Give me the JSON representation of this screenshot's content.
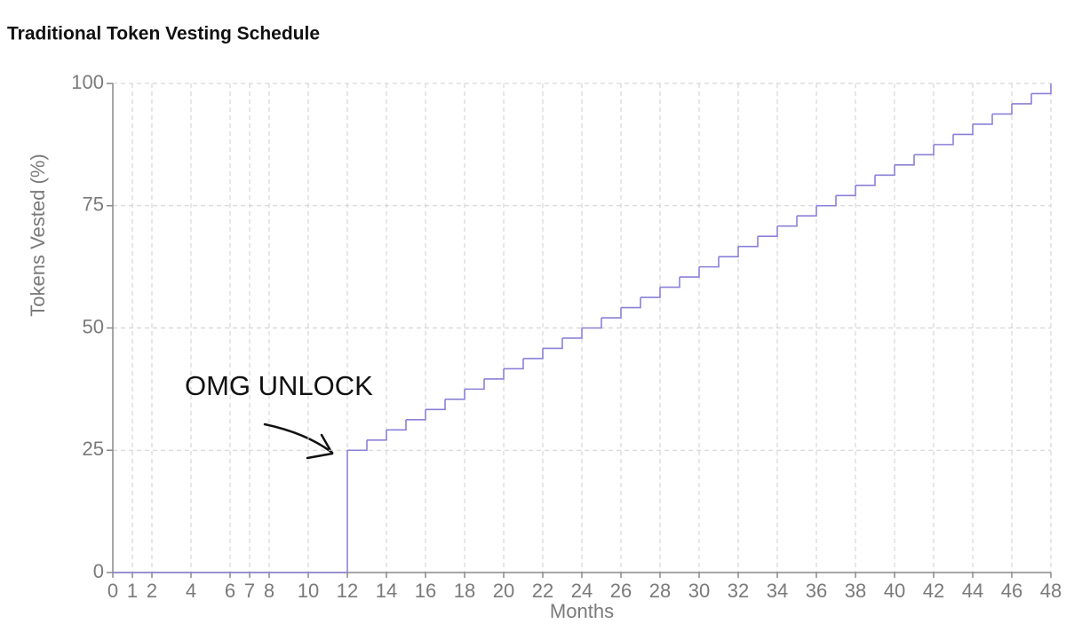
{
  "chart_data": {
    "type": "step",
    "title": "Traditional Token Vesting Schedule",
    "x_label": "Months",
    "y_label": "Tokens Vested (%)",
    "annotation": "OMG UNLOCK",
    "color": "#8a80d8",
    "x": [
      0,
      1,
      2,
      3,
      4,
      5,
      6,
      7,
      8,
      9,
      10,
      11,
      12,
      13,
      14,
      15,
      16,
      17,
      18,
      19,
      20,
      21,
      22,
      23,
      24,
      25,
      26,
      27,
      28,
      29,
      30,
      31,
      32,
      33,
      34,
      35,
      36,
      37,
      38,
      39,
      40,
      41,
      42,
      43,
      44,
      45,
      46,
      47,
      48
    ],
    "values": [
      0,
      0,
      0,
      0,
      0,
      0,
      0,
      0,
      0,
      0,
      0,
      0,
      25,
      27.08,
      29.17,
      31.25,
      33.33,
      35.42,
      37.5,
      39.58,
      41.67,
      43.75,
      45.83,
      47.92,
      50,
      52.08,
      54.17,
      56.25,
      58.33,
      60.42,
      62.5,
      64.58,
      66.67,
      68.75,
      70.83,
      72.92,
      75,
      77.08,
      79.17,
      81.25,
      83.33,
      85.42,
      87.5,
      89.58,
      91.67,
      93.75,
      95.83,
      97.92,
      100
    ],
    "xlim": [
      0,
      48
    ],
    "xticks": [
      0,
      1,
      2,
      4,
      6,
      7,
      8,
      10,
      12,
      14,
      16,
      18,
      20,
      22,
      24,
      26,
      28,
      30,
      32,
      34,
      36,
      38,
      40,
      42,
      44,
      46,
      48
    ],
    "ylim": [
      0,
      100
    ],
    "yticks": [
      0,
      25,
      50,
      75,
      100
    ],
    "grid": true
  }
}
